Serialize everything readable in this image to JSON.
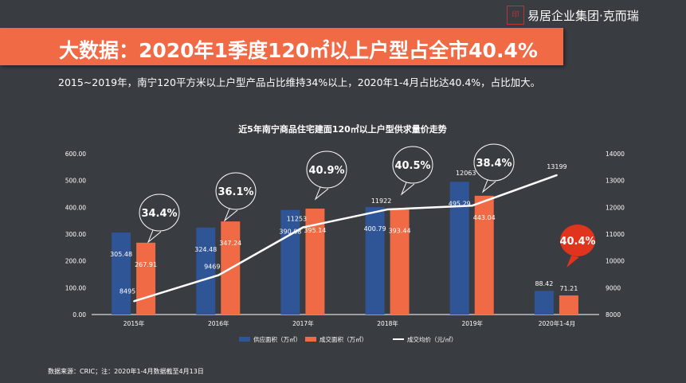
{
  "brand": {
    "logo_text": "易居企业集团·克而瑞",
    "logo_mark": "克而瑞"
  },
  "header": {
    "title": "大数据：2020年1季度120㎡以上户型占全市40.4%",
    "subtitle": "2015~2019年，南宁120平方米以上户型产品占比维持34%以上，2020年1-4月占比达40.4%，占比加大。"
  },
  "footer": {
    "source": "数据来源：CRIC；注：2020年1-4月数据截至4月13日"
  },
  "colors": {
    "background": "#393c41",
    "accent": "#ef6a45",
    "supply": "#2f5597",
    "deal": "#ef6a45",
    "price": "#ffffff",
    "highlight": "#e0341d"
  },
  "chart_data": {
    "type": "bar+line",
    "title": "近5年南宁商品住宅建面120㎡以上户型供求量价走势",
    "categories": [
      "2015年",
      "2016年",
      "2017年",
      "2018年",
      "2019年",
      "2020年1-4月"
    ],
    "left_axis": {
      "range": [
        0,
        600
      ],
      "ticks": [
        "0.00",
        "100.00",
        "200.00",
        "300.00",
        "400.00",
        "500.00",
        "600.00"
      ]
    },
    "right_axis": {
      "range": [
        8000,
        14000
      ],
      "ticks": [
        "8000",
        "9000",
        "10000",
        "11000",
        "12000",
        "13000",
        "14000"
      ]
    },
    "series": [
      {
        "name": "供应面积（万㎡）",
        "type": "bar",
        "axis": "left",
        "values": [
          305.48,
          324.48,
          390.08,
          400.79,
          495.29,
          88.42
        ],
        "labels": [
          "305.48",
          "324.48",
          "390.08",
          "400.79",
          "495.29",
          "88.42"
        ]
      },
      {
        "name": "成交面积（万㎡）",
        "type": "bar",
        "axis": "left",
        "values": [
          267.91,
          347.24,
          395.14,
          393.44,
          443.04,
          71.21
        ],
        "labels": [
          "267.91",
          "347.24",
          "395.14",
          "393.44",
          "443.04",
          "71.21"
        ]
      },
      {
        "name": "成交均价（元/㎡）",
        "type": "line",
        "axis": "right",
        "values": [
          8495,
          9469,
          11253,
          11922,
          12063,
          13199
        ],
        "labels": [
          "8495",
          "9469",
          "11253",
          "11922",
          "12063",
          "13199"
        ]
      }
    ],
    "annotations": [
      "34.4%",
      "36.1%",
      "40.9%",
      "40.5%",
      "38.4%",
      "40.4%"
    ],
    "grid": false,
    "legend": "bottom"
  }
}
